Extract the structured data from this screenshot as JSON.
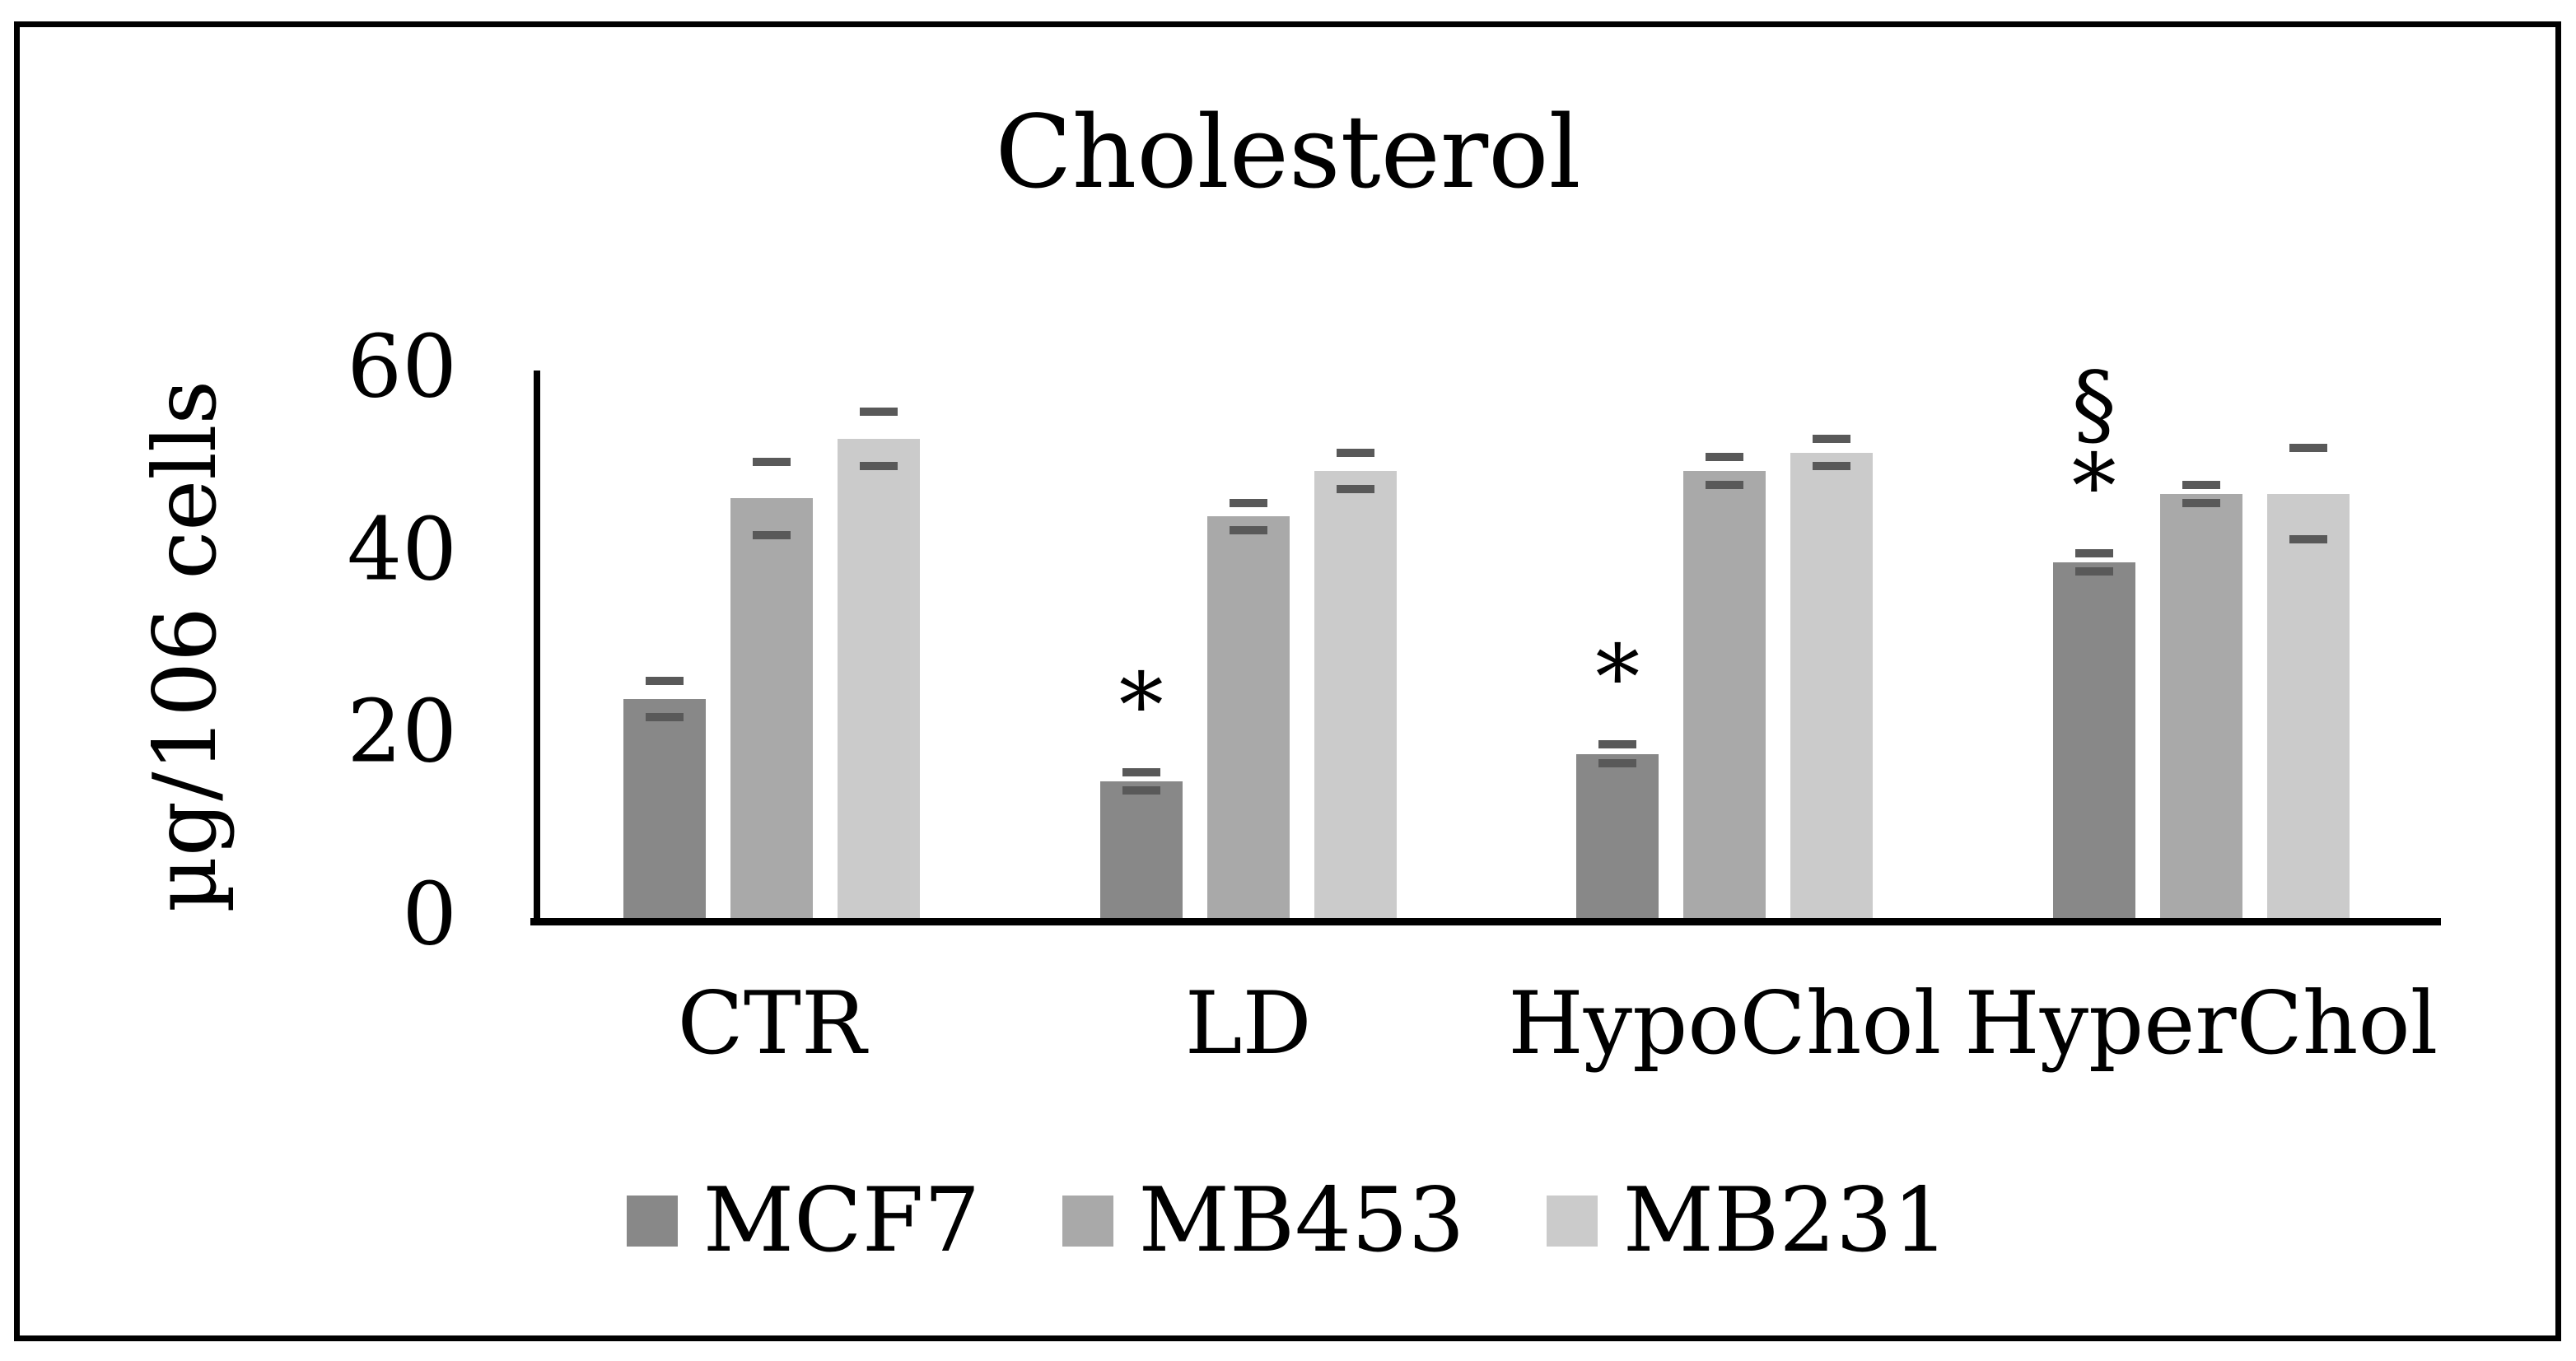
{
  "figure": {
    "title": "Cholesterol",
    "ylabel": "µg/106 cells"
  },
  "chart_data": {
    "type": "bar",
    "title": "Cholesterol",
    "xlabel": "",
    "ylabel": "µg/106 cells",
    "categories": [
      "CTR",
      "LD",
      "HypoChol",
      "HyperChol"
    ],
    "series": [
      {
        "name": "MCF7",
        "color": "#888888",
        "values": [
          24,
          15,
          18,
          39
        ],
        "errors": [
          2,
          1,
          1,
          1
        ]
      },
      {
        "name": "MB453",
        "color": "#a9a9a9",
        "values": [
          46,
          44,
          49,
          46.5
        ],
        "errors": [
          4,
          1.5,
          1.5,
          1
        ]
      },
      {
        "name": "MB231",
        "color": "#cbcbcb",
        "values": [
          52.5,
          49,
          51,
          46.5
        ],
        "errors": [
          3,
          2,
          1.5,
          5
        ]
      }
    ],
    "annotations": [
      {
        "category": "LD",
        "series": "MCF7",
        "symbols": [
          "*"
        ]
      },
      {
        "category": "HypoChol",
        "series": "MCF7",
        "symbols": [
          "*"
        ]
      },
      {
        "category": "HyperChol",
        "series": "MCF7",
        "symbols": [
          "§",
          "*"
        ]
      }
    ],
    "yticks": [
      0,
      20,
      40,
      60
    ],
    "ylim": [
      0,
      60
    ],
    "grid": false,
    "error_bar_color": "#595959",
    "axis_color": "#000000",
    "legend": {
      "position": "bottom",
      "labels": [
        "MCF7",
        "MB453",
        "MB231"
      ]
    }
  }
}
